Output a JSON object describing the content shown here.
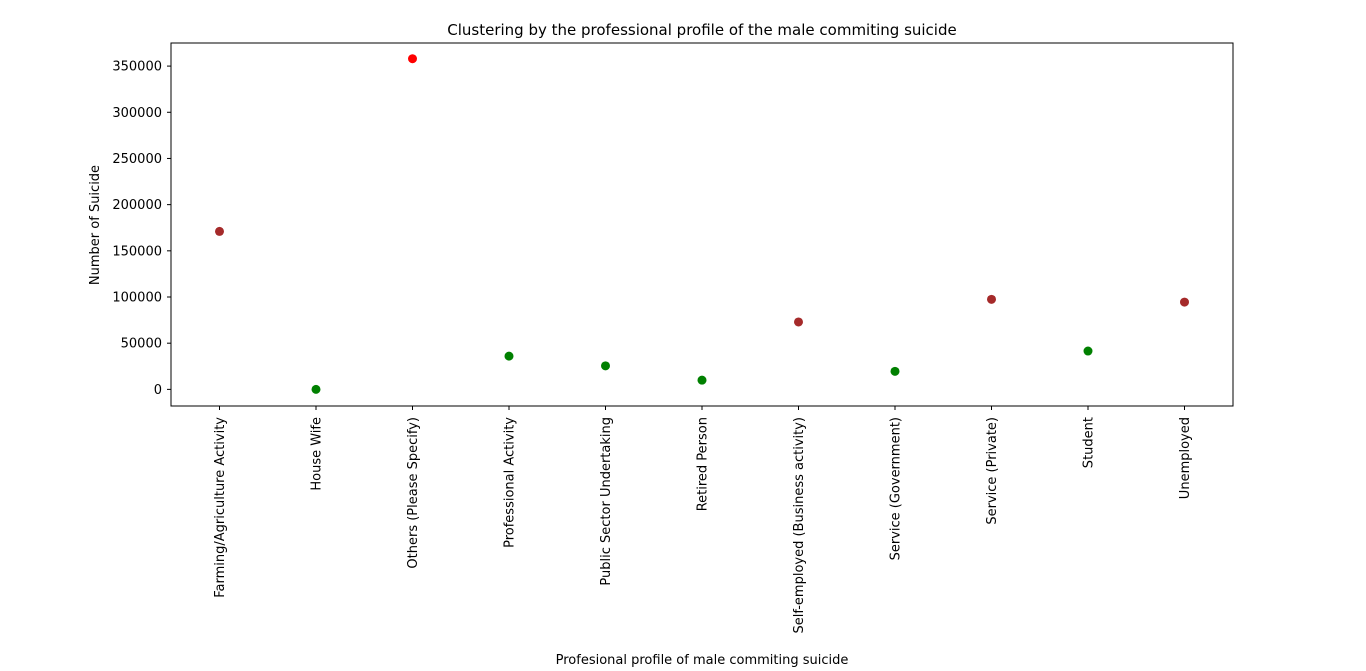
{
  "chart_data": {
    "type": "scatter",
    "title": "Clustering by the professional profile of the male commiting suicide",
    "xlabel": "Profesional profile of male commiting suicide",
    "ylabel": "Number of Suicide",
    "categories": [
      "Farming/Agriculture Activity",
      "House Wife",
      "Others (Please Specify)",
      "Professional Activity",
      "Public Sector Undertaking",
      "Retired Person",
      "Self-employed (Business activity)",
      "Service (Government)",
      "Service (Private)",
      "Student",
      "Unemployed"
    ],
    "values": [
      171000,
      0,
      358000,
      36000,
      25500,
      10000,
      73000,
      19500,
      97500,
      41500,
      94500
    ],
    "point_colors": [
      "#a52a2a",
      "#008000",
      "#ff0000",
      "#008000",
      "#008000",
      "#008000",
      "#a52a2a",
      "#008000",
      "#a52a2a",
      "#008000",
      "#a52a2a"
    ],
    "ylim": [
      -18000,
      375000
    ],
    "yticks": [
      0,
      50000,
      100000,
      150000,
      200000,
      250000,
      300000,
      350000
    ],
    "ytick_labels": [
      "0",
      "50000",
      "100000",
      "150000",
      "200000",
      "250000",
      "300000",
      "350000"
    ],
    "grid": false,
    "legend": null
  }
}
